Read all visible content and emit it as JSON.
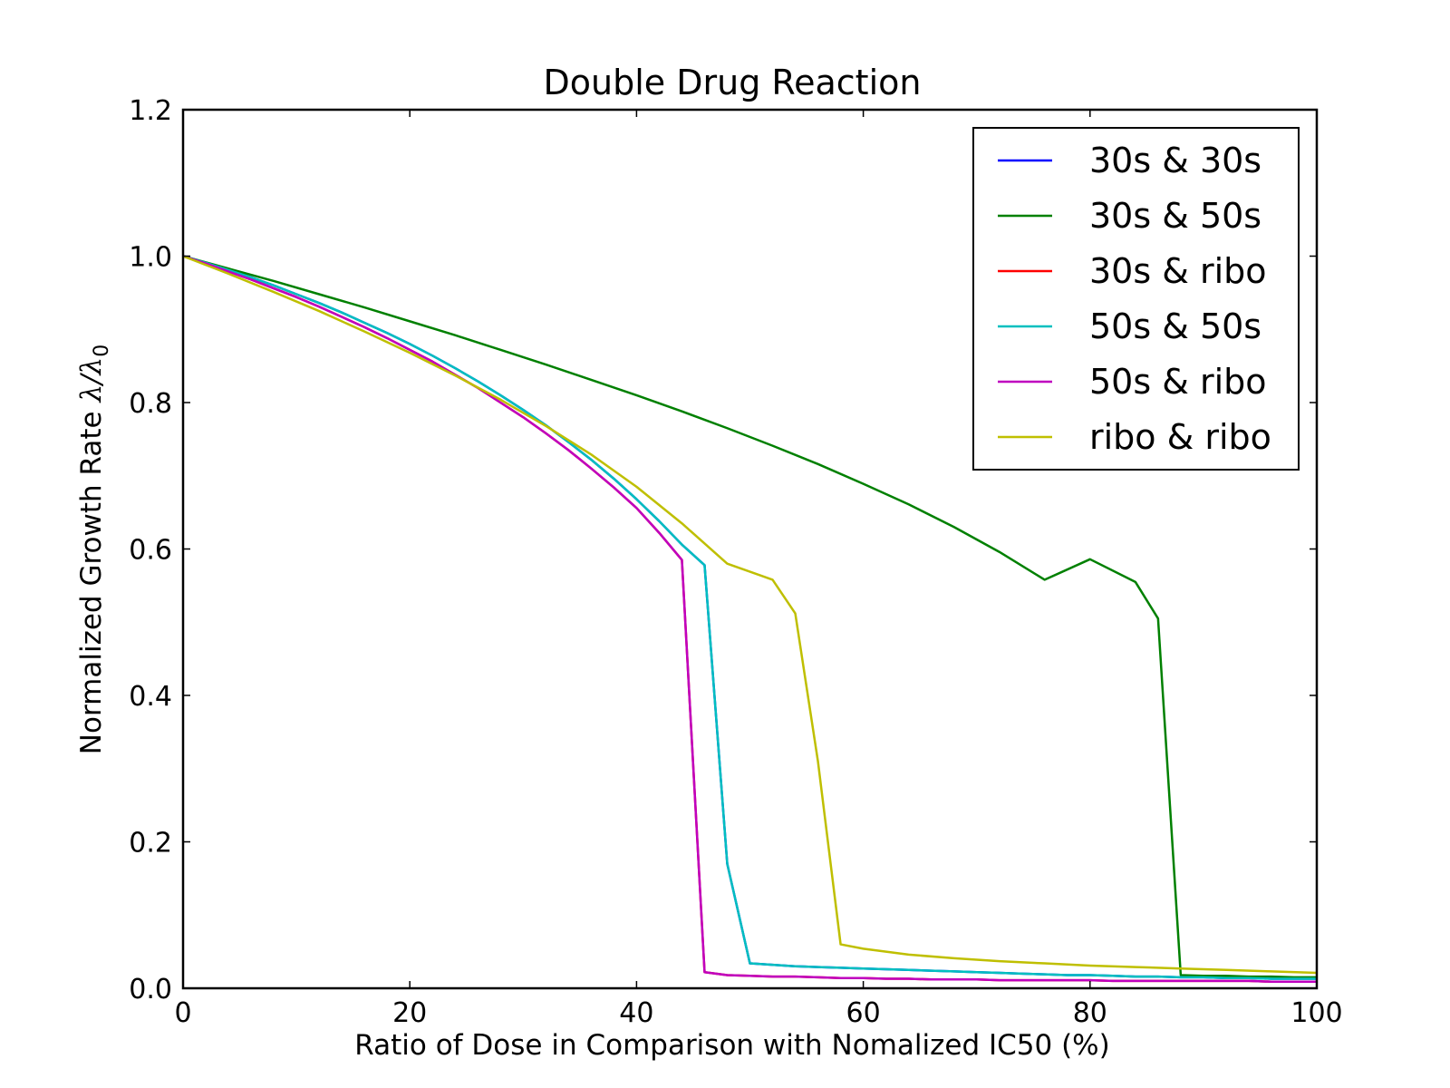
{
  "chart_data": {
    "type": "line",
    "title": "Double Drug Reaction",
    "xlabel": "Ratio of Dose in Comparison with Nomalized IC50 (%)",
    "ylabel": {
      "text": "Normalized Growth Rate ",
      "symbol": "λ/λ",
      "subscript": "0"
    },
    "xlim": [
      0,
      100
    ],
    "ylim": [
      0.0,
      1.2
    ],
    "xticks": [
      0,
      20,
      40,
      60,
      80,
      100
    ],
    "xtick_labels": [
      "0",
      "20",
      "40",
      "60",
      "80",
      "100"
    ],
    "yticks": [
      0.0,
      0.2,
      0.4,
      0.6,
      0.8,
      1.0,
      1.2
    ],
    "ytick_labels": [
      "0.0",
      "0.2",
      "0.4",
      "0.6",
      "0.8",
      "1.0",
      "1.2"
    ],
    "grid": false,
    "legend_position": "top-right",
    "series": [
      {
        "name": "30s & 30s",
        "color": "#0000ff",
        "x": [
          0,
          2,
          4,
          6,
          8,
          10,
          12,
          14,
          16,
          18,
          20,
          22,
          24,
          26,
          28,
          30,
          32,
          34,
          36,
          38,
          40,
          42,
          44,
          46,
          48,
          50,
          52,
          54,
          56,
          58,
          60,
          62,
          64,
          66,
          68,
          70,
          72,
          74,
          76,
          78,
          80,
          82,
          84,
          86,
          88,
          90,
          92,
          94,
          96,
          98,
          100
        ],
        "y": [
          1.0,
          0.991,
          0.981,
          0.971,
          0.96,
          0.948,
          0.936,
          0.923,
          0.909,
          0.895,
          0.88,
          0.864,
          0.847,
          0.829,
          0.81,
          0.79,
          0.769,
          0.746,
          0.722,
          0.696,
          0.668,
          0.638,
          0.606,
          0.578,
          0.17,
          0.034,
          0.032,
          0.03,
          0.029,
          0.028,
          0.027,
          0.026,
          0.025,
          0.024,
          0.023,
          0.022,
          0.021,
          0.02,
          0.019,
          0.018,
          0.018,
          0.017,
          0.016,
          0.016,
          0.015,
          0.015,
          0.014,
          0.014,
          0.013,
          0.013,
          0.013
        ]
      },
      {
        "name": "30s & 50s",
        "color": "#008000",
        "x": [
          0,
          4,
          8,
          12,
          16,
          20,
          24,
          28,
          32,
          36,
          40,
          44,
          48,
          52,
          56,
          60,
          64,
          68,
          72,
          76,
          80,
          84,
          86,
          88,
          90,
          92,
          94,
          96,
          98,
          100
        ],
        "y": [
          1.0,
          0.983,
          0.966,
          0.948,
          0.93,
          0.911,
          0.892,
          0.872,
          0.852,
          0.831,
          0.81,
          0.788,
          0.765,
          0.741,
          0.716,
          0.689,
          0.661,
          0.63,
          0.596,
          0.558,
          0.586,
          0.555,
          0.505,
          0.018,
          0.017,
          0.017,
          0.016,
          0.016,
          0.015,
          0.015
        ]
      },
      {
        "name": "30s & ribo",
        "color": "#ff0000",
        "x": [
          0,
          2,
          4,
          6,
          8,
          10,
          12,
          14,
          16,
          18,
          20,
          22,
          24,
          26,
          28,
          30,
          32,
          34,
          36,
          38,
          40,
          42,
          44,
          46,
          48,
          50,
          52,
          54,
          56,
          58,
          60,
          62,
          64,
          66,
          68,
          70,
          72,
          74,
          76,
          78,
          80,
          82,
          84,
          86,
          88,
          90,
          92,
          94,
          96,
          98,
          100
        ],
        "y": [
          1.0,
          0.99,
          0.979,
          0.968,
          0.956,
          0.944,
          0.931,
          0.917,
          0.903,
          0.888,
          0.872,
          0.856,
          0.838,
          0.82,
          0.8,
          0.78,
          0.758,
          0.735,
          0.71,
          0.684,
          0.656,
          0.622,
          0.585,
          0.022,
          0.018,
          0.017,
          0.016,
          0.016,
          0.015,
          0.014,
          0.014,
          0.013,
          0.013,
          0.012,
          0.012,
          0.012,
          0.011,
          0.011,
          0.011,
          0.011,
          0.011,
          0.01,
          0.01,
          0.01,
          0.01,
          0.01,
          0.01,
          0.01,
          0.009,
          0.009,
          0.009
        ]
      },
      {
        "name": "50s & 50s",
        "color": "#00bfbf",
        "x": [
          0,
          2,
          4,
          6,
          8,
          10,
          12,
          14,
          16,
          18,
          20,
          22,
          24,
          26,
          28,
          30,
          32,
          34,
          36,
          38,
          40,
          42,
          44,
          46,
          48,
          50,
          52,
          54,
          56,
          58,
          60,
          62,
          64,
          66,
          68,
          70,
          72,
          74,
          76,
          78,
          80,
          82,
          84,
          86,
          88,
          90,
          92,
          94,
          96,
          98,
          100
        ],
        "y": [
          1.0,
          0.991,
          0.981,
          0.971,
          0.96,
          0.948,
          0.936,
          0.923,
          0.909,
          0.895,
          0.88,
          0.864,
          0.847,
          0.829,
          0.81,
          0.79,
          0.769,
          0.746,
          0.722,
          0.696,
          0.668,
          0.638,
          0.606,
          0.578,
          0.17,
          0.034,
          0.032,
          0.03,
          0.029,
          0.028,
          0.027,
          0.026,
          0.025,
          0.024,
          0.023,
          0.022,
          0.021,
          0.02,
          0.019,
          0.018,
          0.018,
          0.017,
          0.016,
          0.016,
          0.015,
          0.015,
          0.014,
          0.014,
          0.013,
          0.013,
          0.013
        ]
      },
      {
        "name": "50s & ribo",
        "color": "#bf00bf",
        "x": [
          0,
          2,
          4,
          6,
          8,
          10,
          12,
          14,
          16,
          18,
          20,
          22,
          24,
          26,
          28,
          30,
          32,
          34,
          36,
          38,
          40,
          42,
          44,
          46,
          48,
          50,
          52,
          54,
          56,
          58,
          60,
          62,
          64,
          66,
          68,
          70,
          72,
          74,
          76,
          78,
          80,
          82,
          84,
          86,
          88,
          90,
          92,
          94,
          96,
          98,
          100
        ],
        "y": [
          1.0,
          0.99,
          0.979,
          0.968,
          0.956,
          0.944,
          0.931,
          0.917,
          0.903,
          0.888,
          0.872,
          0.856,
          0.838,
          0.82,
          0.8,
          0.78,
          0.758,
          0.735,
          0.71,
          0.684,
          0.656,
          0.622,
          0.585,
          0.022,
          0.018,
          0.017,
          0.016,
          0.016,
          0.015,
          0.014,
          0.014,
          0.013,
          0.013,
          0.012,
          0.012,
          0.012,
          0.011,
          0.011,
          0.011,
          0.011,
          0.011,
          0.01,
          0.01,
          0.01,
          0.01,
          0.01,
          0.01,
          0.01,
          0.009,
          0.009,
          0.009
        ]
      },
      {
        "name": "ribo & ribo",
        "color": "#bfbf00",
        "x": [
          0,
          4,
          8,
          12,
          16,
          20,
          24,
          28,
          32,
          36,
          40,
          44,
          48,
          52,
          54,
          56,
          58,
          60,
          62,
          64,
          68,
          72,
          76,
          80,
          84,
          88,
          92,
          96,
          100
        ],
        "y": [
          1.0,
          0.976,
          0.951,
          0.925,
          0.897,
          0.868,
          0.837,
          0.804,
          0.768,
          0.729,
          0.685,
          0.635,
          0.58,
          0.558,
          0.512,
          0.31,
          0.06,
          0.054,
          0.05,
          0.046,
          0.041,
          0.037,
          0.034,
          0.031,
          0.029,
          0.027,
          0.025,
          0.023,
          0.021
        ]
      }
    ]
  }
}
